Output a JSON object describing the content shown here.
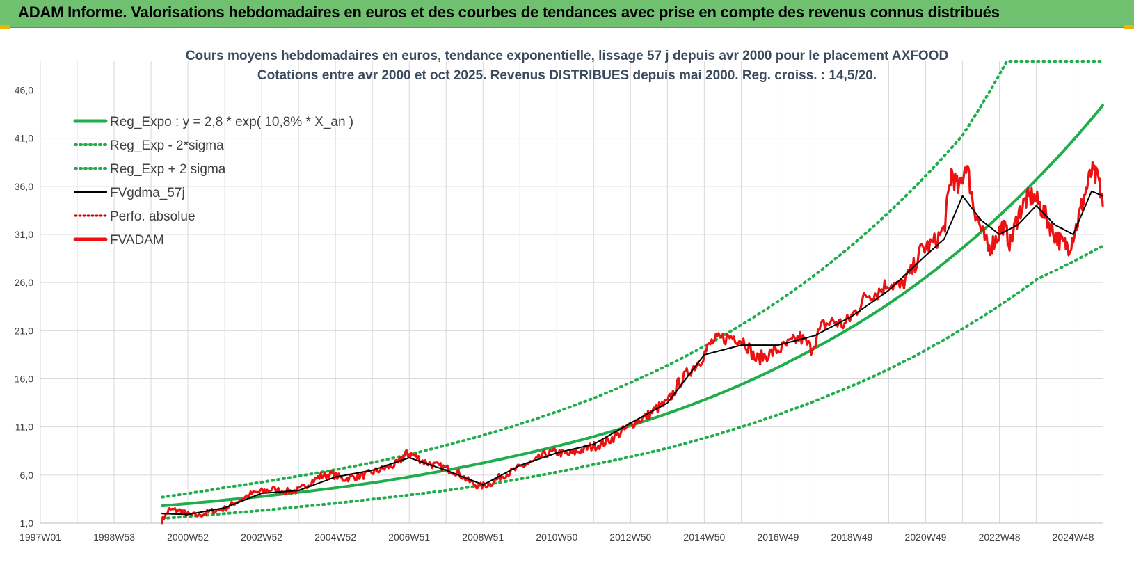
{
  "banner": {
    "title": "ADAM Informe. Valorisations hebdomadaires en euros et des courbes de tendances avec prise en compte des revenus connus distribués"
  },
  "colors": {
    "banner": "#6fc170",
    "regression": "#1fae4b",
    "smoothed": "#000000",
    "fvadam": "#ee1111",
    "perfo": "#cc0000",
    "grid": "#d9d9d9"
  },
  "chart_data": {
    "type": "line",
    "title_lines": [
      "Cours moyens hebdomadaires en euros, tendance exponentielle, lissage 57 j depuis avr 2000 pour le placement AXFOOD",
      "Cotations entre avr 2000 et oct 2025.  Revenus DISTRIBUES depuis mai 2000. Reg. croiss. : 14,5/20."
    ],
    "xlim": [
      1997.0,
      2025.8
    ],
    "ylim": [
      1.0,
      49.0
    ],
    "y_ticks": [
      "1,0",
      "6,0",
      "11,0",
      "16,0",
      "21,0",
      "26,0",
      "31,0",
      "36,0",
      "41,0",
      "46,0"
    ],
    "y_tick_values": [
      1,
      6,
      11,
      16,
      21,
      26,
      31,
      36,
      41,
      46
    ],
    "x_ticks": [
      "1997W01",
      "1998W53",
      "2000W52",
      "2002W52",
      "2004W52",
      "2006W51",
      "2008W51",
      "2010W50",
      "2012W50",
      "2014W50",
      "2016W49",
      "2018W49",
      "2020W49",
      "2022W48",
      "2024W48"
    ],
    "x_tick_years": [
      1997.0,
      1999.0,
      2001.0,
      2003.0,
      2005.0,
      2007.0,
      2009.0,
      2011.0,
      2013.0,
      2015.0,
      2017.0,
      2019.0,
      2021.0,
      2023.0,
      2025.0
    ],
    "legend": [
      {
        "label": "Reg_Expo : y = 2,8 * exp( 10,8% *  X_an )",
        "style": "solid-green"
      },
      {
        "label": "Reg_Exp - 2*sigma",
        "style": "dotted-green"
      },
      {
        "label": "Reg_Exp + 2 sigma",
        "style": "dotted-green"
      },
      {
        "label": "FVgdma_57j",
        "style": "solid-black"
      },
      {
        "label": "Perfo. absolue",
        "style": "dotted-red"
      },
      {
        "label": "FVADAM",
        "style": "solid-red"
      }
    ],
    "series": [
      {
        "name": "Reg_Expo : y = 2,8 * exp( 10,8% *  X_an )",
        "x": [
          2000.3,
          2002.0,
          2004.0,
          2006.0,
          2008.0,
          2010.0,
          2012.0,
          2014.0,
          2016.0,
          2018.0,
          2020.0,
          2022.0,
          2024.0,
          2025.8
        ],
        "values": [
          2.8,
          3.4,
          4.2,
          5.2,
          6.5,
          8.1,
          10.0,
          12.4,
          15.4,
          19.2,
          23.8,
          29.6,
          36.7,
          44.4
        ]
      },
      {
        "name": "Reg_Exp - 2*sigma",
        "x": [
          2000.3,
          2002.0,
          2004.0,
          2006.0,
          2008.0,
          2010.0,
          2012.0,
          2014.0,
          2016.0,
          2018.0,
          2020.0,
          2022.0,
          2024.0,
          2025.8
        ],
        "values": [
          1.5,
          2.0,
          2.7,
          3.5,
          4.4,
          5.6,
          7.1,
          8.8,
          11.0,
          13.7,
          17.0,
          21.2,
          26.3,
          29.8
        ]
      },
      {
        "name": "Reg_Exp + 2 sigma",
        "x": [
          2000.3,
          2002.0,
          2004.0,
          2006.0,
          2008.0,
          2010.0,
          2012.0,
          2014.0,
          2016.0,
          2018.0,
          2020.0,
          2022.0,
          2023.2,
          2025.8
        ],
        "values": [
          3.7,
          4.7,
          5.9,
          7.3,
          9.1,
          11.3,
          14.0,
          17.4,
          21.6,
          26.8,
          33.3,
          41.3,
          49.0,
          49.0
        ]
      },
      {
        "name": "FVADAM",
        "x": [
          2000.3,
          2000.5,
          2000.8,
          2001.0,
          2001.3,
          2001.6,
          2002.0,
          2002.3,
          2002.7,
          2003.0,
          2003.3,
          2003.7,
          2004.0,
          2004.3,
          2004.6,
          2004.9,
          2005.2,
          2005.5,
          2005.8,
          2006.1,
          2006.4,
          2006.7,
          2006.9,
          2007.1,
          2007.4,
          2007.7,
          2008.0,
          2008.3,
          2008.6,
          2008.9,
          2009.2,
          2009.5,
          2009.8,
          2010.1,
          2010.4,
          2010.7,
          2011.0,
          2011.3,
          2011.6,
          2011.9,
          2012.2,
          2012.5,
          2012.8,
          2013.1,
          2013.4,
          2013.7,
          2014.0,
          2014.3,
          2014.6,
          2014.9,
          2015.2,
          2015.5,
          2015.8,
          2016.1,
          2016.4,
          2016.7,
          2017.0,
          2017.3,
          2017.6,
          2017.9,
          2018.2,
          2018.5,
          2018.8,
          2019.1,
          2019.4,
          2019.7,
          2020.0,
          2020.3,
          2020.6,
          2020.9,
          2021.2,
          2021.5,
          2021.7,
          2021.9,
          2022.1,
          2022.3,
          2022.5,
          2022.7,
          2022.9,
          2023.1,
          2023.3,
          2023.5,
          2023.7,
          2023.9,
          2024.1,
          2024.3,
          2024.5,
          2024.7,
          2024.9,
          2025.1,
          2025.3,
          2025.5,
          2025.7,
          2025.8
        ],
        "values": [
          1.3,
          2.4,
          2.3,
          1.9,
          1.8,
          2.2,
          2.5,
          3.2,
          4.0,
          4.3,
          4.5,
          4.3,
          4.4,
          5.2,
          5.9,
          6.1,
          5.6,
          5.8,
          6.0,
          6.4,
          6.8,
          7.2,
          8.2,
          8.1,
          7.4,
          7.0,
          6.7,
          6.3,
          5.4,
          4.8,
          5.1,
          5.9,
          6.4,
          7.0,
          7.4,
          8.2,
          8.4,
          8.1,
          8.5,
          8.9,
          9.2,
          9.8,
          10.6,
          11.5,
          12.0,
          12.9,
          13.5,
          15.5,
          16.8,
          18.0,
          19.8,
          20.2,
          20.4,
          19.9,
          18.0,
          18.5,
          19.0,
          19.6,
          20.3,
          19.2,
          21.5,
          22.0,
          21.6,
          23.0,
          24.7,
          25.0,
          26.0,
          25.5,
          27.0,
          29.5,
          30.0,
          31.5,
          37.5,
          35.5,
          38.5,
          34.0,
          31.5,
          29.5,
          30.5,
          32.0,
          30.0,
          33.0,
          34.5,
          35.0,
          34.0,
          32.5,
          31.0,
          30.0,
          29.8,
          32.0,
          35.0,
          37.5,
          36.5,
          34.0
        ]
      },
      {
        "name": "FVgdma_57j",
        "x": [
          2000.3,
          2001.0,
          2002.0,
          2003.0,
          2004.0,
          2005.0,
          2006.0,
          2007.0,
          2008.0,
          2009.0,
          2010.0,
          2011.0,
          2012.0,
          2013.0,
          2014.0,
          2015.0,
          2016.0,
          2017.0,
          2018.0,
          2019.0,
          2020.0,
          2021.0,
          2021.5,
          2022.0,
          2022.5,
          2023.0,
          2023.5,
          2024.0,
          2024.5,
          2025.0,
          2025.5,
          2025.8
        ],
        "values": [
          2.0,
          1.9,
          2.6,
          4.1,
          4.4,
          5.8,
          6.5,
          7.8,
          6.5,
          5.0,
          7.0,
          8.3,
          9.2,
          11.4,
          13.5,
          18.5,
          19.5,
          19.5,
          20.5,
          22.5,
          25.2,
          28.8,
          30.5,
          35.0,
          32.5,
          31.0,
          32.0,
          34.0,
          32.0,
          31.0,
          35.5,
          35.0
        ]
      }
    ]
  }
}
